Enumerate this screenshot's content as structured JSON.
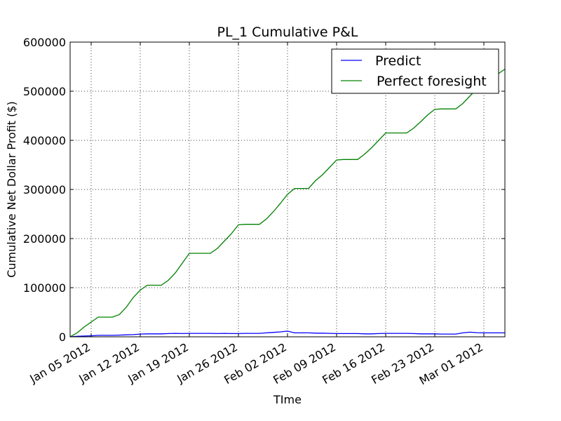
{
  "chart_data": {
    "type": "line",
    "title": "PL_1 Cumulative P&L",
    "xlabel": "TIme",
    "ylabel": "Cumulative Net Dollar Profit ($)",
    "x_range": [
      "2012-01-02",
      "2012-03-04"
    ],
    "ylim": [
      0,
      600000
    ],
    "y_ticks": [
      0,
      100000,
      200000,
      300000,
      400000,
      500000,
      600000
    ],
    "x_ticks": [
      {
        "date": "2012-01-05",
        "label": "Jan 05 2012"
      },
      {
        "date": "2012-01-12",
        "label": "Jan 12 2012"
      },
      {
        "date": "2012-01-19",
        "label": "Jan 19 2012"
      },
      {
        "date": "2012-01-26",
        "label": "Jan 26 2012"
      },
      {
        "date": "2012-02-02",
        "label": "Feb 02 2012"
      },
      {
        "date": "2012-02-09",
        "label": "Feb 09 2012"
      },
      {
        "date": "2012-02-16",
        "label": "Feb 16 2012"
      },
      {
        "date": "2012-02-23",
        "label": "Feb 23 2012"
      },
      {
        "date": "2012-03-01",
        "label": "Mar 01 2012"
      }
    ],
    "grid": true,
    "legend_position": "top-right",
    "series": [
      {
        "name": "Predict",
        "color": "#0000ff",
        "points": [
          [
            "2012-01-02",
            0
          ],
          [
            "2012-01-03",
            1000
          ],
          [
            "2012-01-04",
            1500
          ],
          [
            "2012-01-05",
            2000
          ],
          [
            "2012-01-06",
            3000
          ],
          [
            "2012-01-07",
            3000
          ],
          [
            "2012-01-08",
            3000
          ],
          [
            "2012-01-09",
            3500
          ],
          [
            "2012-01-10",
            4000
          ],
          [
            "2012-01-11",
            4500
          ],
          [
            "2012-01-12",
            5500
          ],
          [
            "2012-01-13",
            6000
          ],
          [
            "2012-01-14",
            6000
          ],
          [
            "2012-01-15",
            6000
          ],
          [
            "2012-01-16",
            6500
          ],
          [
            "2012-01-17",
            7000
          ],
          [
            "2012-01-18",
            6500
          ],
          [
            "2012-01-19",
            7000
          ],
          [
            "2012-01-20",
            7000
          ],
          [
            "2012-01-21",
            7000
          ],
          [
            "2012-01-22",
            7000
          ],
          [
            "2012-01-23",
            6500
          ],
          [
            "2012-01-24",
            7000
          ],
          [
            "2012-01-25",
            6500
          ],
          [
            "2012-01-26",
            6500
          ],
          [
            "2012-01-27",
            7000
          ],
          [
            "2012-01-28",
            7000
          ],
          [
            "2012-01-29",
            7000
          ],
          [
            "2012-01-30",
            8000
          ],
          [
            "2012-01-31",
            9000
          ],
          [
            "2012-02-01",
            10000
          ],
          [
            "2012-02-02",
            11500
          ],
          [
            "2012-02-03",
            8000
          ],
          [
            "2012-02-04",
            8000
          ],
          [
            "2012-02-05",
            8000
          ],
          [
            "2012-02-06",
            7500
          ],
          [
            "2012-02-07",
            7500
          ],
          [
            "2012-02-08",
            7000
          ],
          [
            "2012-02-09",
            6500
          ],
          [
            "2012-02-10",
            6500
          ],
          [
            "2012-02-11",
            6500
          ],
          [
            "2012-02-12",
            6500
          ],
          [
            "2012-02-13",
            6000
          ],
          [
            "2012-02-14",
            6000
          ],
          [
            "2012-02-15",
            6500
          ],
          [
            "2012-02-16",
            7000
          ],
          [
            "2012-02-17",
            7000
          ],
          [
            "2012-02-18",
            7000
          ],
          [
            "2012-02-19",
            7000
          ],
          [
            "2012-02-20",
            6500
          ],
          [
            "2012-02-21",
            6000
          ],
          [
            "2012-02-22",
            6000
          ],
          [
            "2012-02-23",
            6000
          ],
          [
            "2012-02-24",
            5500
          ],
          [
            "2012-02-25",
            5500
          ],
          [
            "2012-02-26",
            5500
          ],
          [
            "2012-02-27",
            8000
          ],
          [
            "2012-02-28",
            9500
          ],
          [
            "2012-02-29",
            8500
          ],
          [
            "2012-03-01",
            8000
          ],
          [
            "2012-03-02",
            8000
          ],
          [
            "2012-03-03",
            8000
          ],
          [
            "2012-03-04",
            8000
          ]
        ]
      },
      {
        "name": "Perfect foresight",
        "color": "#008000",
        "points": [
          [
            "2012-01-02",
            0
          ],
          [
            "2012-01-03",
            8000
          ],
          [
            "2012-01-04",
            20000
          ],
          [
            "2012-01-05",
            30000
          ],
          [
            "2012-01-06",
            40000
          ],
          [
            "2012-01-07",
            40000
          ],
          [
            "2012-01-08",
            40000
          ],
          [
            "2012-01-09",
            45000
          ],
          [
            "2012-01-10",
            60000
          ],
          [
            "2012-01-11",
            80000
          ],
          [
            "2012-01-12",
            95000
          ],
          [
            "2012-01-13",
            105000
          ],
          [
            "2012-01-14",
            105000
          ],
          [
            "2012-01-15",
            105000
          ],
          [
            "2012-01-16",
            115000
          ],
          [
            "2012-01-17",
            130000
          ],
          [
            "2012-01-18",
            150000
          ],
          [
            "2012-01-19",
            170000
          ],
          [
            "2012-01-20",
            170000
          ],
          [
            "2012-01-21",
            170000
          ],
          [
            "2012-01-22",
            170000
          ],
          [
            "2012-01-23",
            180000
          ],
          [
            "2012-01-24",
            195000
          ],
          [
            "2012-01-25",
            210000
          ],
          [
            "2012-01-26",
            228000
          ],
          [
            "2012-01-27",
            229000
          ],
          [
            "2012-01-28",
            229000
          ],
          [
            "2012-01-29",
            229000
          ],
          [
            "2012-01-30",
            240000
          ],
          [
            "2012-01-31",
            255000
          ],
          [
            "2012-02-01",
            272000
          ],
          [
            "2012-02-02",
            290000
          ],
          [
            "2012-02-03",
            302000
          ],
          [
            "2012-02-04",
            302000
          ],
          [
            "2012-02-05",
            302000
          ],
          [
            "2012-02-06",
            318000
          ],
          [
            "2012-02-07",
            330000
          ],
          [
            "2012-02-08",
            345000
          ],
          [
            "2012-02-09",
            360000
          ],
          [
            "2012-02-10",
            361000
          ],
          [
            "2012-02-11",
            361000
          ],
          [
            "2012-02-12",
            361000
          ],
          [
            "2012-02-13",
            372000
          ],
          [
            "2012-02-14",
            385000
          ],
          [
            "2012-02-15",
            400000
          ],
          [
            "2012-02-16",
            415000
          ],
          [
            "2012-02-17",
            415000
          ],
          [
            "2012-02-18",
            415000
          ],
          [
            "2012-02-19",
            415000
          ],
          [
            "2012-02-20",
            425000
          ],
          [
            "2012-02-21",
            438000
          ],
          [
            "2012-02-22",
            452000
          ],
          [
            "2012-02-23",
            463000
          ],
          [
            "2012-02-24",
            464000
          ],
          [
            "2012-02-25",
            464000
          ],
          [
            "2012-02-26",
            464000
          ],
          [
            "2012-02-27",
            475000
          ],
          [
            "2012-02-28",
            490000
          ],
          [
            "2012-02-29",
            505000
          ],
          [
            "2012-03-01",
            520000
          ],
          [
            "2012-03-02",
            520000
          ],
          [
            "2012-03-03",
            535000
          ],
          [
            "2012-03-04",
            545000
          ]
        ]
      }
    ]
  }
}
